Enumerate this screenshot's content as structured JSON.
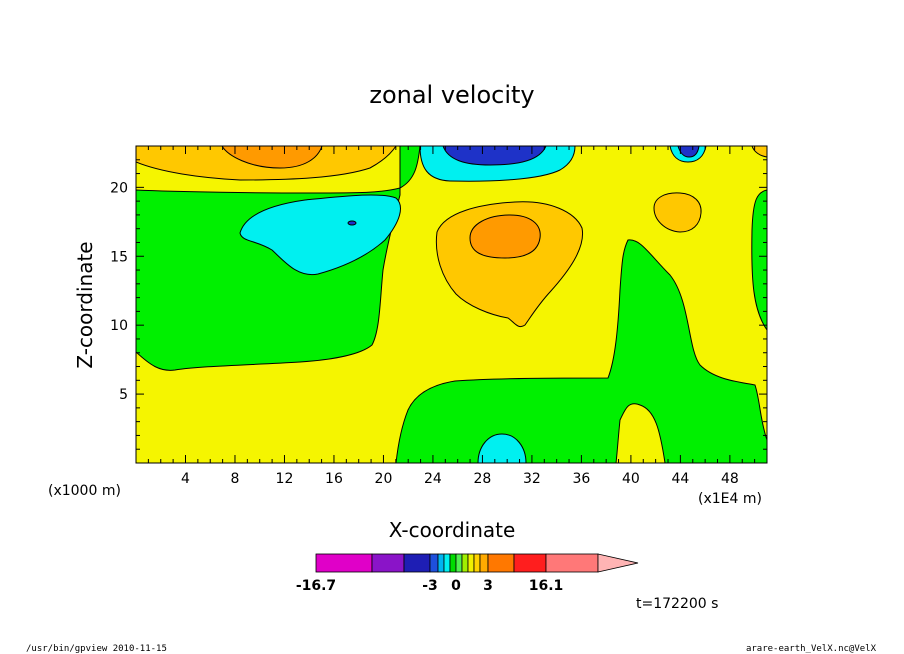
{
  "chart_data": {
    "type": "heatmap",
    "title": "zonal velocity",
    "xlabel": "X-coordinate",
    "ylabel": "Z-coordinate",
    "x_unit_left": "(x1000 m)",
    "x_unit_right": "(x1E4 m)",
    "xlim": [
      0,
      51
    ],
    "ylim": [
      0,
      23
    ],
    "xticks": [
      4,
      8,
      12,
      16,
      20,
      24,
      28,
      32,
      36,
      40,
      44,
      48
    ],
    "yticks": [
      5,
      10,
      15,
      20
    ],
    "time_label": "t=172200 s",
    "colorbar": {
      "colors": [
        "#e000c8",
        "#8a14c8",
        "#1e1eb4",
        "#1e50dc",
        "#00b4f0",
        "#00f0f0",
        "#00dc00",
        "#50f050",
        "#a0f000",
        "#f0f000",
        "#ffd200",
        "#ffaa00",
        "#ff7800",
        "#ff1e1e",
        "#ff7878"
      ],
      "extend_color": "#ffb4b4",
      "tick_labels": [
        "-16.7",
        "-3",
        "0",
        "3",
        "16.1"
      ]
    },
    "regions": [
      {
        "value_class": "positive-weak",
        "color": "#f5f500"
      },
      {
        "value_class": "negative-weak",
        "color": "#00f000"
      },
      {
        "value_class": "positive-moderate",
        "color": "#ffc800"
      },
      {
        "value_class": "positive-strong",
        "color": "#ff9a00"
      },
      {
        "value_class": "negative-moderate",
        "color": "#00f0f0"
      },
      {
        "value_class": "negative-strong",
        "color": "#1e32c8"
      }
    ]
  },
  "footer": {
    "left": "/usr/bin/gpview  2010-11-15",
    "right": "arare-earth_VelX.nc@VelX"
  }
}
